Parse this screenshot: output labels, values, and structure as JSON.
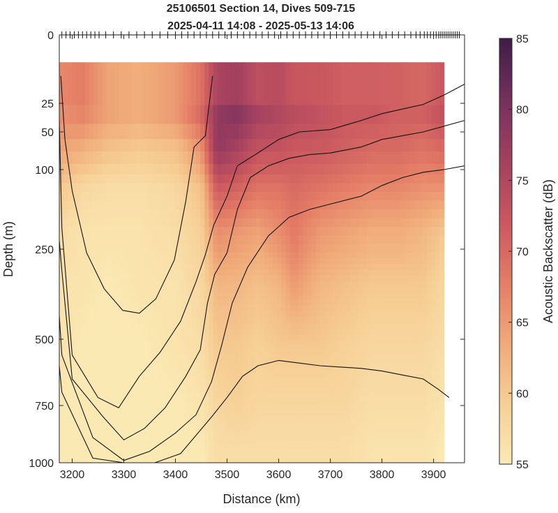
{
  "chart_data": {
    "type": "heatmap",
    "title": "25106501 Section 14, Dives 509-715",
    "subtitle": "2025-04-11 14:08 - 2025-05-13 14:06",
    "xlabel": "Distance (km)",
    "ylabel": "Depth (m)",
    "colorbar_label": "Acoustic Backscatter (dB)",
    "xlim": [
      3175,
      3960
    ],
    "x_ticks": [
      3200,
      3300,
      3400,
      3500,
      3600,
      3700,
      3800,
      3900
    ],
    "x_tick_labels": [
      "3200",
      "3300",
      "3400",
      "3500",
      "3600",
      "3700",
      "3800",
      "3900"
    ],
    "y_scale": "stretched (square-root-like), inverted",
    "y_ticks": [
      0,
      25,
      50,
      100,
      250,
      500,
      750,
      1000
    ],
    "y_tick_labels": [
      "0",
      "25",
      "50",
      "100",
      "250",
      "500",
      "750",
      "1000"
    ],
    "data_top_depth_m": 10,
    "clim": [
      55,
      85
    ],
    "colorbar_ticks": [
      55,
      60,
      65,
      70,
      75,
      80,
      85
    ],
    "colorbar_tick_labels": [
      "55",
      "60",
      "65",
      "70",
      "75",
      "80",
      "85"
    ],
    "colormap": [
      "#fbe9b4",
      "#f6cf95",
      "#f0a978",
      "#e47c66",
      "#c9575f",
      "#a2405f",
      "#75305d",
      "#3f1c47"
    ],
    "grid": false,
    "legend": "none",
    "dive_ticks_depth_m": 0,
    "dive_tick_x_km": [
      3180,
      3188,
      3196,
      3204,
      3212,
      3220,
      3228,
      3236,
      3244,
      3252,
      3265,
      3280,
      3295,
      3310,
      3325,
      3340,
      3355,
      3370,
      3385,
      3400,
      3412,
      3424,
      3436,
      3448,
      3460,
      3472,
      3484,
      3496,
      3508,
      3520,
      3532,
      3544,
      3556,
      3568,
      3580,
      3592,
      3604,
      3616,
      3628,
      3640,
      3652,
      3664,
      3676,
      3688,
      3700,
      3712,
      3724,
      3736,
      3748,
      3760,
      3772,
      3784,
      3796,
      3808,
      3820,
      3832,
      3844,
      3856,
      3866,
      3874,
      3882,
      3888,
      3894,
      3900,
      3905,
      3910,
      3914,
      3918,
      3922,
      3926,
      3930,
      3934,
      3938,
      3942,
      3946,
      3950
    ],
    "backscatter_profiles": [
      {
        "x": 3180,
        "z": [
          67,
          66,
          64,
          60,
          57,
          56,
          56,
          55,
          55
        ]
      },
      {
        "x": 3220,
        "z": [
          68,
          67,
          63,
          58,
          56,
          56,
          55,
          55,
          55
        ]
      },
      {
        "x": 3270,
        "z": [
          64,
          64,
          61,
          57,
          56,
          55,
          55,
          55,
          55
        ]
      },
      {
        "x": 3330,
        "z": [
          63,
          63,
          60,
          57,
          56,
          56,
          55,
          55,
          55
        ]
      },
      {
        "x": 3400,
        "z": [
          65,
          65,
          61,
          58,
          57,
          56,
          56,
          55,
          55
        ]
      },
      {
        "x": 3450,
        "z": [
          69,
          70,
          66,
          61,
          59,
          58,
          57,
          56,
          55
        ]
      },
      {
        "x": 3480,
        "z": [
          75,
          78,
          78,
          72,
          66,
          62,
          60,
          58,
          57
        ]
      },
      {
        "x": 3520,
        "z": [
          76,
          79,
          76,
          71,
          65,
          62,
          60,
          59,
          57
        ]
      },
      {
        "x": 3560,
        "z": [
          73,
          76,
          73,
          69,
          64,
          61,
          59,
          58,
          57
        ]
      },
      {
        "x": 3600,
        "z": [
          74,
          75,
          73,
          69,
          66,
          62,
          60,
          58,
          57
        ]
      },
      {
        "x": 3630,
        "z": [
          72,
          74,
          72,
          70,
          68,
          65,
          60,
          58,
          57
        ]
      },
      {
        "x": 3680,
        "z": [
          72,
          73,
          72,
          69,
          65,
          62,
          60,
          58,
          57
        ]
      },
      {
        "x": 3730,
        "z": [
          71,
          72,
          71,
          68,
          64,
          61,
          59,
          58,
          57
        ]
      },
      {
        "x": 3780,
        "z": [
          71,
          72,
          70,
          67,
          63,
          60,
          58,
          57,
          56
        ]
      },
      {
        "x": 3830,
        "z": [
          71,
          71,
          70,
          67,
          63,
          60,
          58,
          57,
          56
        ]
      },
      {
        "x": 3880,
        "z": [
          70,
          71,
          69,
          66,
          62,
          60,
          58,
          57,
          56
        ]
      },
      {
        "x": 3920,
        "z": [
          72,
          73,
          70,
          66,
          60,
          58,
          57,
          56,
          55
        ]
      }
    ],
    "profile_depths_m": [
      15,
      35,
      70,
      130,
      220,
      350,
      520,
      750,
      950
    ],
    "contours": [
      {
        "points": [
          [
            3178,
            15
          ],
          [
            3186,
            60
          ],
          [
            3200,
            140
          ],
          [
            3228,
            260
          ],
          [
            3262,
            360
          ],
          [
            3298,
            420
          ],
          [
            3330,
            428
          ],
          [
            3362,
            388
          ],
          [
            3398,
            280
          ],
          [
            3420,
            160
          ],
          [
            3436,
            70
          ],
          [
            3458,
            55
          ],
          [
            3472,
            15
          ]
        ]
      },
      {
        "points": [
          [
            3173,
            15
          ],
          [
            3180,
            210
          ],
          [
            3200,
            560
          ],
          [
            3250,
            720
          ],
          [
            3290,
            760
          ],
          [
            3330,
            640
          ],
          [
            3370,
            550
          ],
          [
            3410,
            450
          ],
          [
            3440,
            340
          ],
          [
            3458,
            265
          ],
          [
            3474,
            205
          ],
          [
            3500,
            150
          ],
          [
            3520,
            95
          ],
          [
            3555,
            80
          ],
          [
            3600,
            60
          ],
          [
            3640,
            50
          ],
          [
            3700,
            48
          ],
          [
            3760,
            40
          ],
          [
            3800,
            34
          ],
          [
            3840,
            30
          ],
          [
            3880,
            26
          ],
          [
            3920,
            22
          ],
          [
            3960,
            18
          ]
        ]
      },
      {
        "points": [
          [
            3173,
            210
          ],
          [
            3180,
            310
          ],
          [
            3200,
            650
          ],
          [
            3260,
            800
          ],
          [
            3300,
            900
          ],
          [
            3340,
            850
          ],
          [
            3380,
            760
          ],
          [
            3420,
            640
          ],
          [
            3448,
            540
          ],
          [
            3462,
            400
          ],
          [
            3476,
            320
          ],
          [
            3500,
            260
          ],
          [
            3520,
            175
          ],
          [
            3545,
            115
          ],
          [
            3580,
            95
          ],
          [
            3620,
            85
          ],
          [
            3660,
            80
          ],
          [
            3700,
            78
          ],
          [
            3760,
            70
          ],
          [
            3800,
            60
          ],
          [
            3840,
            55
          ],
          [
            3880,
            50
          ],
          [
            3920,
            45
          ],
          [
            3960,
            40
          ]
        ]
      },
      {
        "points": [
          [
            3173,
            390
          ],
          [
            3180,
            560
          ],
          [
            3240,
            890
          ],
          [
            3300,
            990
          ],
          [
            3350,
            950
          ],
          [
            3400,
            870
          ],
          [
            3440,
            790
          ],
          [
            3470,
            660
          ],
          [
            3490,
            520
          ],
          [
            3510,
            400
          ],
          [
            3540,
            300
          ],
          [
            3580,
            225
          ],
          [
            3620,
            190
          ],
          [
            3660,
            175
          ],
          [
            3700,
            165
          ],
          [
            3760,
            150
          ],
          [
            3800,
            130
          ],
          [
            3840,
            115
          ],
          [
            3880,
            105
          ],
          [
            3920,
            100
          ],
          [
            3960,
            95
          ]
        ]
      },
      {
        "points": [
          [
            3173,
            560
          ],
          [
            3180,
            700
          ],
          [
            3240,
            980
          ],
          [
            3300,
            1000
          ],
          [
            3360,
            1000
          ],
          [
            3410,
            960
          ],
          [
            3440,
            880
          ],
          [
            3470,
            800
          ],
          [
            3500,
            720
          ],
          [
            3530,
            640
          ],
          [
            3560,
            600
          ],
          [
            3600,
            580
          ],
          [
            3640,
            590
          ],
          [
            3680,
            600
          ],
          [
            3720,
            605
          ],
          [
            3760,
            610
          ],
          [
            3800,
            620
          ],
          [
            3840,
            635
          ],
          [
            3880,
            650
          ],
          [
            3910,
            690
          ],
          [
            3930,
            720
          ]
        ]
      }
    ]
  }
}
